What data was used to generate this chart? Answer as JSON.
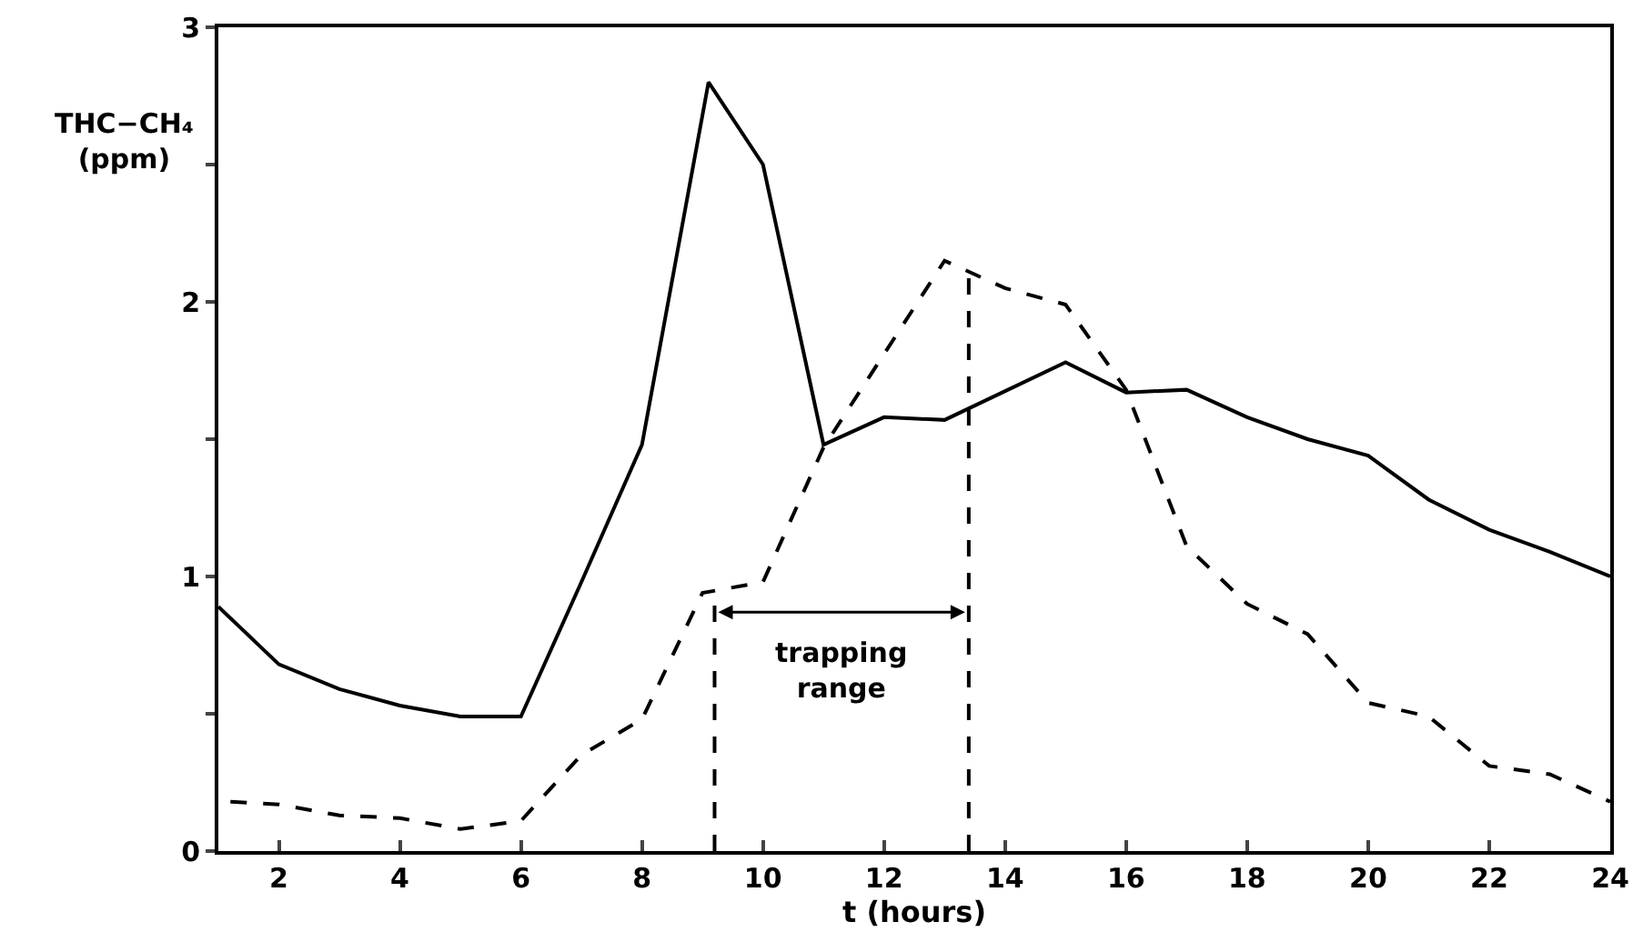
{
  "chart_data": {
    "type": "line",
    "xlabel": "t (hours)",
    "ylabel": "THC−CH₄\n(ppm)",
    "xlim": [
      1,
      24
    ],
    "xticks": [
      2,
      4,
      6,
      8,
      10,
      12,
      14,
      16,
      18,
      20,
      22,
      24
    ],
    "ylim": [
      0,
      3
    ],
    "yticks": [
      0,
      {
        "value": 0.5,
        "label": null
      },
      1,
      {
        "value": 1.5,
        "label": null
      },
      2,
      {
        "value": 2.5,
        "label": null
      },
      3
    ],
    "grid": false,
    "series": [
      {
        "color": "#000000",
        "line_style": "solid",
        "x": [
          1,
          2,
          3,
          4,
          5,
          6,
          7,
          8,
          9.1,
          10,
          11,
          12,
          13,
          15,
          16,
          17,
          18,
          19,
          20,
          21,
          22,
          23,
          24
        ],
        "values": [
          0.89,
          0.68,
          0.59,
          0.53,
          0.49,
          0.49,
          0.98,
          1.48,
          2.8,
          2.5,
          1.48,
          1.58,
          1.57,
          1.78,
          1.67,
          1.68,
          1.58,
          1.5,
          1.44,
          1.28,
          1.17,
          1.09,
          1.0
        ]
      },
      {
        "color": "#000000",
        "line_style": "dashed",
        "x": [
          1.2,
          2,
          3,
          4,
          5,
          6,
          7,
          8,
          9,
          10,
          11,
          13,
          14,
          15,
          16,
          17,
          18,
          19,
          20,
          21,
          22,
          23,
          24
        ],
        "values": [
          0.18,
          0.17,
          0.13,
          0.12,
          0.08,
          0.11,
          0.35,
          0.48,
          0.94,
          0.98,
          1.47,
          2.15,
          2.05,
          1.99,
          1.68,
          1.11,
          0.9,
          0.79,
          0.54,
          0.49,
          0.31,
          0.28,
          0.18
        ]
      }
    ],
    "ref_lines": [
      {
        "axis": "x",
        "value": 9.2,
        "label": null,
        "line_style": "dashed"
      },
      {
        "axis": "x",
        "value": 13.4,
        "label": null,
        "line_style": "dashed"
      }
    ],
    "annotations": [
      "trapping\nrange"
    ]
  }
}
